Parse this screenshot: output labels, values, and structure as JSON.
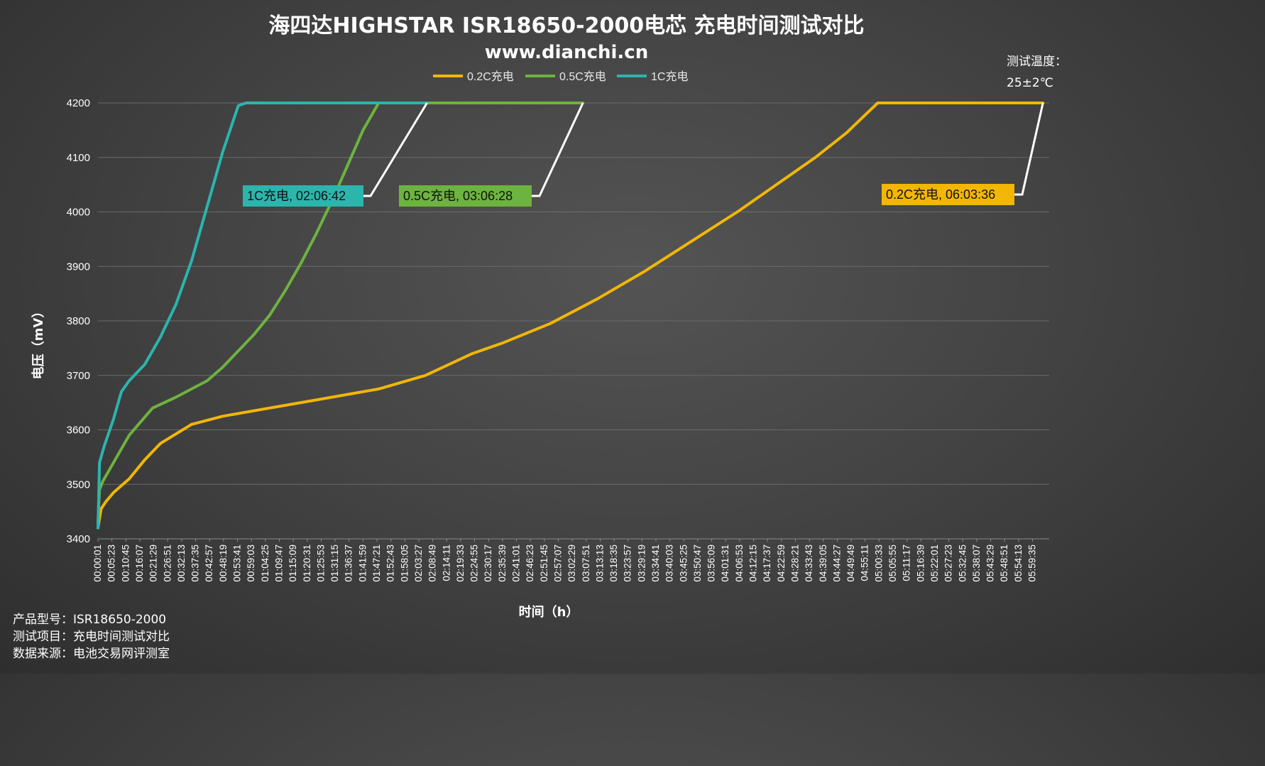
{
  "header": {
    "title": "海四达HIGHSTAR ISR18650-2000电芯 充电时间测试对比",
    "subtitle": "www.dianchi.cn"
  },
  "temperature_note": {
    "line1": "测试温度：",
    "line2": "25±2℃"
  },
  "footer": {
    "model": "产品型号：ISR18650-2000",
    "item": "测试项目：充电时间测试对比",
    "source": "数据来源：电池交易网评测室"
  },
  "colors": {
    "series_02c": "#f2b705",
    "series_05c": "#6db33f",
    "series_1c": "#2bb5ad",
    "grid": "#6a6a6a",
    "callout_line": "#ffffff"
  },
  "chart_data": {
    "type": "line",
    "xlabel": "时间（h）",
    "ylabel": "电压（mV）",
    "ylim": [
      3400,
      4200
    ],
    "y_ticks": [
      "3400",
      "3500",
      "3600",
      "3700",
      "3800",
      "3900",
      "4000",
      "4100",
      "4200"
    ],
    "x_unit": "hours",
    "xlim": [
      0,
      6.1
    ],
    "x_tick_labels": [
      "00:00:01",
      "00:05:23",
      "00:10:45",
      "00:16:07",
      "00:21:29",
      "00:26:51",
      "00:32:13",
      "00:37:35",
      "00:42:57",
      "00:48:19",
      "00:53:41",
      "00:59:03",
      "01:04:25",
      "01:09:47",
      "01:15:09",
      "01:20:31",
      "01:25:53",
      "01:31:15",
      "01:36:37",
      "01:41:59",
      "01:47:21",
      "01:52:43",
      "01:58:05",
      "02:03:27",
      "02:08:49",
      "02:14:11",
      "02:19:33",
      "02:24:55",
      "02:30:17",
      "02:35:39",
      "02:41:01",
      "02:46:23",
      "02:51:45",
      "02:57:07",
      "03:02:29",
      "03:07:51",
      "03:13:13",
      "03:18:35",
      "03:23:57",
      "03:29:19",
      "03:34:41",
      "03:40:03",
      "03:45:25",
      "03:50:47",
      "03:56:09",
      "04:01:31",
      "04:06:53",
      "04:12:15",
      "04:17:37",
      "04:22:59",
      "04:28:21",
      "04:33:43",
      "04:39:05",
      "04:44:27",
      "04:49:49",
      "04:55:11",
      "05:00:33",
      "05:05:55",
      "05:11:17",
      "05:16:39",
      "05:22:01",
      "05:27:23",
      "05:32:45",
      "05:38:07",
      "05:43:29",
      "05:48:51",
      "05:54:13",
      "05:59:35"
    ],
    "legend_position": "top",
    "grid": true,
    "series": [
      {
        "name": "0.2C充电",
        "color": "#f2b705",
        "x": [
          0,
          0.02,
          0.05,
          0.1,
          0.2,
          0.3,
          0.4,
          0.6,
          0.8,
          1.0,
          1.2,
          1.5,
          1.8,
          2.1,
          2.4,
          2.6,
          2.9,
          3.2,
          3.5,
          3.8,
          4.1,
          4.4,
          4.6,
          4.8,
          5.0,
          5.3,
          5.6,
          6.06
        ],
        "y": [
          3420,
          3455,
          3468,
          3485,
          3510,
          3545,
          3575,
          3610,
          3625,
          3635,
          3645,
          3660,
          3675,
          3700,
          3740,
          3760,
          3795,
          3840,
          3890,
          3945,
          4000,
          4060,
          4100,
          4145,
          4200,
          4200,
          4200,
          4200
        ]
      },
      {
        "name": "0.5C充电",
        "color": "#6db33f",
        "x": [
          0,
          0.01,
          0.03,
          0.1,
          0.2,
          0.35,
          0.5,
          0.6,
          0.7,
          0.8,
          0.9,
          1.0,
          1.1,
          1.2,
          1.3,
          1.4,
          1.5,
          1.6,
          1.7,
          1.8,
          1.85,
          2.0,
          2.5,
          3.11
        ],
        "y": [
          3430,
          3490,
          3505,
          3540,
          3590,
          3640,
          3660,
          3675,
          3690,
          3715,
          3745,
          3775,
          3810,
          3855,
          3905,
          3960,
          4020,
          4085,
          4150,
          4200,
          4200,
          4200,
          4200,
          4200
        ]
      },
      {
        "name": "1C充电",
        "color": "#2bb5ad",
        "x": [
          0,
          0.01,
          0.04,
          0.1,
          0.15,
          0.2,
          0.3,
          0.4,
          0.5,
          0.6,
          0.7,
          0.8,
          0.9,
          0.95,
          1.0,
          1.5,
          2.11
        ],
        "y": [
          3420,
          3540,
          3570,
          3620,
          3670,
          3690,
          3720,
          3770,
          3830,
          3910,
          4010,
          4110,
          4195,
          4200,
          4200,
          4200,
          4200
        ]
      }
    ],
    "annotations": [
      {
        "label": "1C充电, 02:06:42",
        "series": "1C充电",
        "color": "#2bb5ad"
      },
      {
        "label": "0.5C充电, 03:06:28",
        "series": "0.5C充电",
        "color": "#6db33f"
      },
      {
        "label": "0.2C充电, 06:03:36",
        "series": "0.2C充电",
        "color": "#f2b705"
      }
    ]
  }
}
